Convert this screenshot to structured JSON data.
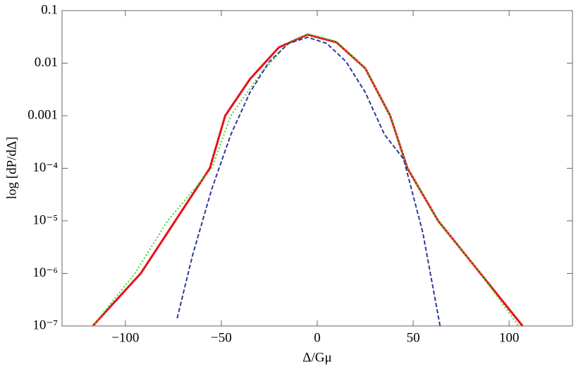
{
  "chart_data": {
    "type": "line",
    "xlabel": "Δ/Gμ",
    "ylabel": "log [dP/dΔ]",
    "xlim": [
      -133,
      133
    ],
    "ylim": [
      1e-07,
      0.1
    ],
    "yscale": "log",
    "xticks": [
      {
        "value": -100,
        "label": "−100"
      },
      {
        "value": -50,
        "label": "−50"
      },
      0,
      50,
      100
    ],
    "yticks": [
      {
        "value": 1e-07,
        "label": "10⁻⁷"
      },
      {
        "value": 1e-06,
        "label": "10⁻⁶"
      },
      {
        "value": 1e-05,
        "label": "10⁻⁵"
      },
      {
        "value": 0.0001,
        "label": "10⁻⁴"
      },
      0.001,
      0.01,
      0.1
    ],
    "series": [
      {
        "color": "#e8101a",
        "style": "solid",
        "x": [
          -117,
          -92,
          -74,
          -56,
          -48,
          -35,
          -20,
          -5,
          10,
          25,
          38,
          47,
          63,
          85,
          107
        ],
        "values": [
          1e-07,
          1e-06,
          1e-05,
          0.0001,
          0.001,
          0.005,
          0.02,
          0.035,
          0.025,
          0.008,
          0.001,
          0.0001,
          1e-05,
          1e-06,
          1e-07
        ]
      },
      {
        "color": "#33dd22",
        "style": "dotted",
        "x": [
          -117,
          -95,
          -78,
          -55,
          -45,
          -30,
          -15,
          -5,
          10,
          25,
          38,
          47,
          63,
          85,
          105
        ],
        "values": [
          1e-07,
          1e-06,
          1e-05,
          0.0001,
          0.001,
          0.006,
          0.025,
          0.036,
          0.026,
          0.008,
          0.001,
          0.0001,
          1e-05,
          1e-06,
          1e-07
        ]
      },
      {
        "color": "#2f3a9a",
        "style": "dashed",
        "x": [
          -73,
          -65,
          -55,
          -45,
          -35,
          -25,
          -15,
          -5,
          5,
          15,
          25,
          35,
          45,
          55,
          64
        ],
        "values": [
          1.4e-07,
          2.2e-06,
          4e-05,
          0.00044,
          0.0028,
          0.0107,
          0.0237,
          0.031,
          0.0237,
          0.0107,
          0.0028,
          0.00044,
          0.00015,
          6e-06,
          1e-07
        ]
      }
    ]
  }
}
